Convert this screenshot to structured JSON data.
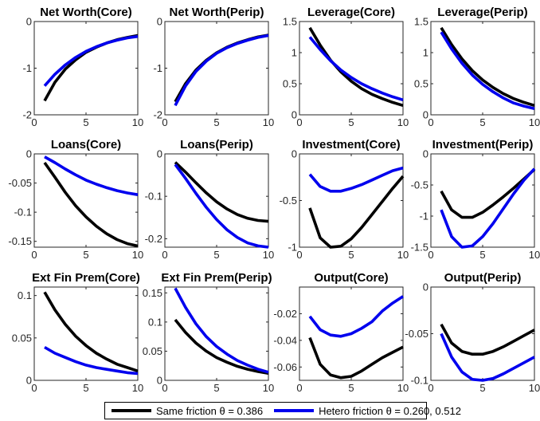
{
  "chart_data": [
    {
      "type": "line",
      "title": "Net Worth(Core)",
      "x": [
        1,
        2,
        3,
        4,
        5,
        6,
        7,
        8,
        9,
        10
      ],
      "xlim": [
        0,
        10
      ],
      "ylim": [
        -2,
        0
      ],
      "xticks": [
        "0",
        "5",
        "10"
      ],
      "yticks": [
        "-2",
        "-1",
        "0"
      ],
      "ytick_values": [
        -2,
        -1,
        0
      ],
      "series": [
        {
          "name": "Same friction θ = 0.386",
          "values": [
            -1.7,
            -1.3,
            -1.02,
            -0.82,
            -0.66,
            -0.55,
            -0.46,
            -0.39,
            -0.34,
            -0.3
          ]
        },
        {
          "name": "Hetero friction θ = 0.260, 0.512",
          "values": [
            -1.38,
            -1.13,
            -0.93,
            -0.77,
            -0.64,
            -0.54,
            -0.46,
            -0.4,
            -0.35,
            -0.32
          ]
        }
      ]
    },
    {
      "type": "line",
      "title": "Net Worth(Perip)",
      "x": [
        1,
        2,
        3,
        4,
        5,
        6,
        7,
        8,
        9,
        10
      ],
      "xlim": [
        0,
        10
      ],
      "ylim": [
        -2,
        0
      ],
      "xticks": [
        "0",
        "5",
        "10"
      ],
      "yticks": [
        "-2",
        "-1",
        "0"
      ],
      "ytick_values": [
        -2,
        -1,
        0
      ],
      "series": [
        {
          "name": "Same friction θ = 0.386",
          "values": [
            -1.72,
            -1.33,
            -1.04,
            -0.83,
            -0.67,
            -0.55,
            -0.46,
            -0.39,
            -0.33,
            -0.29
          ]
        },
        {
          "name": "Hetero friction θ = 0.260, 0.512",
          "values": [
            -1.8,
            -1.38,
            -1.07,
            -0.85,
            -0.68,
            -0.56,
            -0.47,
            -0.4,
            -0.34,
            -0.3
          ]
        }
      ]
    },
    {
      "type": "line",
      "title": "Leverage(Core)",
      "x": [
        1,
        2,
        3,
        4,
        5,
        6,
        7,
        8,
        9,
        10
      ],
      "xlim": [
        0,
        10
      ],
      "ylim": [
        0,
        1.5
      ],
      "xticks": [
        "0",
        "5",
        "10"
      ],
      "yticks": [
        "0",
        "0.5",
        "1",
        "1.5"
      ],
      "ytick_values": [
        0,
        0.5,
        1,
        1.5
      ],
      "series": [
        {
          "name": "Same friction θ = 0.386",
          "values": [
            1.4,
            1.12,
            0.88,
            0.69,
            0.54,
            0.42,
            0.33,
            0.26,
            0.2,
            0.15
          ]
        },
        {
          "name": "Hetero friction θ = 0.260, 0.512",
          "values": [
            1.25,
            1.05,
            0.87,
            0.72,
            0.6,
            0.5,
            0.42,
            0.35,
            0.29,
            0.24
          ]
        }
      ]
    },
    {
      "type": "line",
      "title": "Leverage(Perip)",
      "x": [
        1,
        2,
        3,
        4,
        5,
        6,
        7,
        8,
        9,
        10
      ],
      "xlim": [
        0,
        10
      ],
      "ylim": [
        0,
        1.5
      ],
      "xticks": [
        "0",
        "5",
        "10"
      ],
      "yticks": [
        "0",
        "0.5",
        "1",
        "1.5"
      ],
      "ytick_values": [
        0,
        0.5,
        1,
        1.5
      ],
      "series": [
        {
          "name": "Same friction θ = 0.386",
          "values": [
            1.4,
            1.13,
            0.9,
            0.71,
            0.56,
            0.44,
            0.34,
            0.26,
            0.2,
            0.15
          ]
        },
        {
          "name": "Hetero friction θ = 0.260, 0.512",
          "values": [
            1.33,
            1.06,
            0.83,
            0.64,
            0.49,
            0.37,
            0.27,
            0.19,
            0.14,
            0.1
          ]
        }
      ]
    },
    {
      "type": "line",
      "title": "Loans(Core)",
      "x": [
        1,
        2,
        3,
        4,
        5,
        6,
        7,
        8,
        9,
        10
      ],
      "xlim": [
        0,
        10
      ],
      "ylim": [
        -0.16,
        0
      ],
      "xticks": [
        "0",
        "5",
        "10"
      ],
      "yticks": [
        "-0.15",
        "-0.1",
        "-0.05",
        "0"
      ],
      "ytick_values": [
        -0.15,
        -0.1,
        -0.05,
        0
      ],
      "series": [
        {
          "name": "Same friction θ = 0.386",
          "values": [
            -0.015,
            -0.04,
            -0.066,
            -0.089,
            -0.108,
            -0.124,
            -0.137,
            -0.147,
            -0.154,
            -0.158
          ]
        },
        {
          "name": "Hetero friction θ = 0.260, 0.512",
          "values": [
            -0.005,
            -0.015,
            -0.026,
            -0.036,
            -0.045,
            -0.052,
            -0.058,
            -0.063,
            -0.067,
            -0.07
          ]
        }
      ]
    },
    {
      "type": "line",
      "title": "Loans(Perip)",
      "x": [
        1,
        2,
        3,
        4,
        5,
        6,
        7,
        8,
        9,
        10
      ],
      "xlim": [
        0,
        10
      ],
      "ylim": [
        -0.22,
        0
      ],
      "xticks": [
        "0",
        "5",
        "10"
      ],
      "yticks": [
        "-0.2",
        "-0.1",
        "0"
      ],
      "ytick_values": [
        -0.2,
        -0.1,
        0
      ],
      "series": [
        {
          "name": "Same friction θ = 0.386",
          "values": [
            -0.02,
            -0.043,
            -0.068,
            -0.092,
            -0.113,
            -0.13,
            -0.143,
            -0.152,
            -0.157,
            -0.159
          ]
        },
        {
          "name": "Hetero friction θ = 0.260, 0.512",
          "values": [
            -0.025,
            -0.058,
            -0.093,
            -0.126,
            -0.155,
            -0.179,
            -0.197,
            -0.21,
            -0.217,
            -0.22
          ]
        }
      ]
    },
    {
      "type": "line",
      "title": "Investment(Core)",
      "x": [
        1,
        2,
        3,
        4,
        5,
        6,
        7,
        8,
        9,
        10
      ],
      "xlim": [
        0,
        10
      ],
      "ylim": [
        -1,
        0
      ],
      "xticks": [
        "0",
        "5",
        "10"
      ],
      "yticks": [
        "-1",
        "-0.5",
        "0"
      ],
      "ytick_values": [
        -1,
        -0.5,
        0
      ],
      "series": [
        {
          "name": "Same friction θ = 0.386",
          "values": [
            -0.58,
            -0.9,
            -1.0,
            -0.99,
            -0.91,
            -0.79,
            -0.65,
            -0.51,
            -0.37,
            -0.24
          ]
        },
        {
          "name": "Hetero friction θ = 0.260, 0.512",
          "values": [
            -0.22,
            -0.35,
            -0.4,
            -0.4,
            -0.37,
            -0.33,
            -0.28,
            -0.23,
            -0.18,
            -0.15
          ]
        }
      ]
    },
    {
      "type": "line",
      "title": "Investment(Perip)",
      "x": [
        1,
        2,
        3,
        4,
        5,
        6,
        7,
        8,
        9,
        10
      ],
      "xlim": [
        0,
        10
      ],
      "ylim": [
        -1.5,
        0
      ],
      "xticks": [
        "0",
        "5",
        "10"
      ],
      "yticks": [
        "-1.5",
        "-1",
        "-0.5",
        "0"
      ],
      "ytick_values": [
        -1.5,
        -1,
        -0.5,
        0
      ],
      "series": [
        {
          "name": "Same friction θ = 0.386",
          "values": [
            -0.6,
            -0.9,
            -1.02,
            -1.02,
            -0.94,
            -0.82,
            -0.69,
            -0.55,
            -0.4,
            -0.25
          ]
        },
        {
          "name": "Hetero friction θ = 0.260, 0.512",
          "values": [
            -0.9,
            -1.33,
            -1.5,
            -1.48,
            -1.33,
            -1.12,
            -0.88,
            -0.64,
            -0.42,
            -0.24
          ]
        }
      ]
    },
    {
      "type": "line",
      "title": "Ext Fin Prem(Core)",
      "x": [
        1,
        2,
        3,
        4,
        5,
        6,
        7,
        8,
        9,
        10
      ],
      "xlim": [
        0,
        10
      ],
      "ylim": [
        0,
        0.11
      ],
      "xticks": [
        "0",
        "5",
        "10"
      ],
      "yticks": [
        "0",
        "0.05",
        "0.1"
      ],
      "ytick_values": [
        0,
        0.05,
        0.1
      ],
      "series": [
        {
          "name": "Same friction θ = 0.386",
          "values": [
            0.104,
            0.083,
            0.066,
            0.052,
            0.041,
            0.032,
            0.025,
            0.019,
            0.015,
            0.011
          ]
        },
        {
          "name": "Hetero friction θ = 0.260, 0.512",
          "values": [
            0.039,
            0.032,
            0.027,
            0.022,
            0.018,
            0.015,
            0.013,
            0.011,
            0.009,
            0.008
          ]
        }
      ]
    },
    {
      "type": "line",
      "title": "Ext Fin Prem(Perip)",
      "x": [
        1,
        2,
        3,
        4,
        5,
        6,
        7,
        8,
        9,
        10
      ],
      "xlim": [
        0,
        10
      ],
      "ylim": [
        0,
        0.16
      ],
      "xticks": [
        "0",
        "5",
        "10"
      ],
      "yticks": [
        "0",
        "0.05",
        "0.1",
        "0.15"
      ],
      "ytick_values": [
        0,
        0.05,
        0.1,
        0.15
      ],
      "series": [
        {
          "name": "Same friction θ = 0.386",
          "values": [
            0.104,
            0.082,
            0.064,
            0.05,
            0.039,
            0.031,
            0.024,
            0.019,
            0.015,
            0.012
          ]
        },
        {
          "name": "Hetero friction θ = 0.260, 0.512",
          "values": [
            0.158,
            0.125,
            0.097,
            0.075,
            0.058,
            0.045,
            0.034,
            0.026,
            0.019,
            0.014
          ]
        }
      ]
    },
    {
      "type": "line",
      "title": "Output(Core)",
      "x": [
        1,
        2,
        3,
        4,
        5,
        6,
        7,
        8,
        9,
        10
      ],
      "xlim": [
        0,
        10
      ],
      "ylim": [
        -0.07,
        0
      ],
      "xticks": [
        "0",
        "5",
        "10"
      ],
      "yticks": [
        "-0.06",
        "-0.04",
        "-0.02"
      ],
      "ytick_values": [
        -0.06,
        -0.04,
        -0.02
      ],
      "series": [
        {
          "name": "Same friction θ = 0.386",
          "values": [
            -0.038,
            -0.058,
            -0.066,
            -0.068,
            -0.067,
            -0.063,
            -0.058,
            -0.053,
            -0.049,
            -0.045
          ]
        },
        {
          "name": "Hetero friction θ = 0.260, 0.512",
          "values": [
            -0.022,
            -0.032,
            -0.036,
            -0.037,
            -0.035,
            -0.031,
            -0.026,
            -0.018,
            -0.012,
            -0.007
          ]
        }
      ]
    },
    {
      "type": "line",
      "title": "Output(Perip)",
      "x": [
        1,
        2,
        3,
        4,
        5,
        6,
        7,
        8,
        9,
        10
      ],
      "xlim": [
        0,
        10
      ],
      "ylim": [
        -0.1,
        0
      ],
      "xticks": [
        "0",
        "5",
        "10"
      ],
      "yticks": [
        "-0.1",
        "-0.05",
        "0"
      ],
      "ytick_values": [
        -0.1,
        -0.05,
        0
      ],
      "series": [
        {
          "name": "Same friction θ = 0.386",
          "values": [
            -0.04,
            -0.06,
            -0.069,
            -0.072,
            -0.072,
            -0.069,
            -0.064,
            -0.058,
            -0.052,
            -0.046
          ]
        },
        {
          "name": "Hetero friction θ = 0.260, 0.512",
          "values": [
            -0.05,
            -0.075,
            -0.091,
            -0.099,
            -0.1,
            -0.098,
            -0.093,
            -0.087,
            -0.081,
            -0.075
          ]
        }
      ]
    }
  ],
  "colors": {
    "same": "#000000",
    "hetero": "#0000ee"
  },
  "legend": {
    "same_label": "Same friction θ = 0.386",
    "hetero_label": "Hetero friction θ = 0.260, 0.512"
  }
}
